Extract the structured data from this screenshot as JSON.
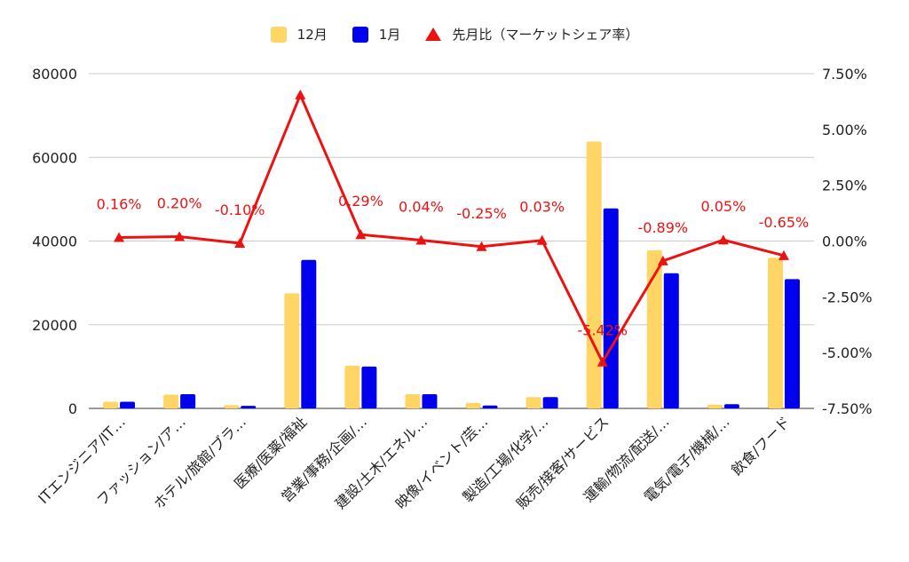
{
  "legend": {
    "series1": "12月",
    "series2": "1月",
    "series3": "先月比（マーケットシェア率）"
  },
  "colors": {
    "series1": "#ffd666",
    "series2": "#0000ee",
    "series3": "#ee1111",
    "grid": "#cccccc",
    "axis": "#333333"
  },
  "chart_data": {
    "type": "bar",
    "title": "",
    "xlabel": "",
    "ylabel": "",
    "categories": [
      "ITエンジニア/IT…",
      "ファッション/ア…",
      "ホテル/旅館/ブラ…",
      "医療/医薬/福祉",
      "営業/事務/企画/…",
      "建設/土木/エネル…",
      "映像/イベント/芸…",
      "製造/工場/化学/…",
      "販売/接客/サービス",
      "運輸/物流/配送/…",
      "電気/電子/機械/…",
      "飲食/フード"
    ],
    "ylim": [
      0,
      80000
    ],
    "yticks": [
      "0",
      "20000",
      "40000",
      "60000",
      "80000"
    ],
    "y2lim": [
      -7.5,
      7.5
    ],
    "y2ticks": [
      "-7.50%",
      "-5.00%",
      "-2.50%",
      "0.00%",
      "2.50%",
      "5.00%",
      "7.50%"
    ],
    "grid": true,
    "legend_position": "top",
    "series": [
      {
        "name": "12月",
        "type": "bar",
        "axis": "left",
        "values": [
          1600,
          3300,
          800,
          27500,
          10200,
          3400,
          1300,
          2700,
          63800,
          37800,
          900,
          36000
        ]
      },
      {
        "name": "1月",
        "type": "bar",
        "axis": "left",
        "values": [
          1600,
          3400,
          600,
          35500,
          10000,
          3400,
          700,
          2700,
          47800,
          32300,
          1000,
          30900
        ]
      },
      {
        "name": "先月比（マーケットシェア率）",
        "type": "line",
        "axis": "right",
        "values": [
          0.16,
          0.2,
          -0.1,
          6.55,
          0.29,
          0.04,
          -0.25,
          0.03,
          -5.42,
          -0.89,
          0.05,
          -0.65
        ],
        "labels": [
          "0.16%",
          "0.20%",
          "-0.10%",
          "",
          "0.29%",
          "0.04%",
          "-0.25%",
          "0.03%",
          "-5.42%",
          "-0.89%",
          "0.05%",
          "-0.65%"
        ]
      }
    ]
  }
}
